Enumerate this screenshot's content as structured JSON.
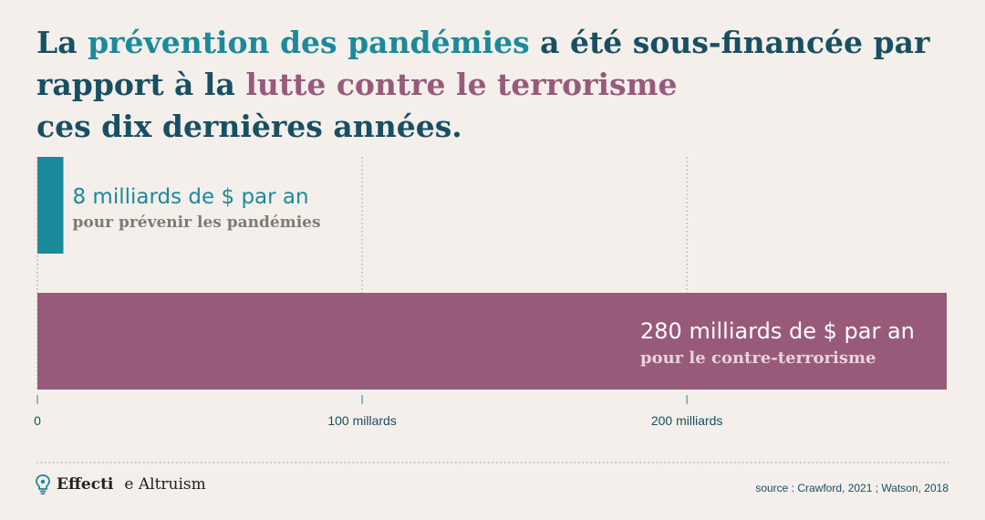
{
  "title": {
    "part1": "La ",
    "highlight1": "prévention des pandémies",
    "part2": " a été sous-financée par rapport à la ",
    "highlight2": "lutte contre le terrorisme",
    "part3": "ces dix dernières années."
  },
  "colors": {
    "title": "#174f63",
    "teal": "#1b8a9b",
    "purple": "#985a7b",
    "background": "#f4efea"
  },
  "chart_data": {
    "type": "bar",
    "orientation": "horizontal",
    "xlim": [
      0,
      280
    ],
    "grid": "vertical dotted",
    "ticks": [
      {
        "value": 0,
        "label": "0"
      },
      {
        "value": 100,
        "label": "100 millards"
      },
      {
        "value": 200,
        "label": "200 milliards"
      }
    ],
    "bars": [
      {
        "value": 8,
        "label": "8 milliards de $ par an",
        "sublabel": "pour prévenir les pandémies",
        "color": "#1b8a9b",
        "label_color": "#1b8a9b",
        "sublabel_color": "#7f7a74"
      },
      {
        "value": 280,
        "label": "280 milliards de $ par an",
        "sublabel": "pour le contre-terrorisme",
        "color": "#985a7b",
        "label_color": "#ffffff",
        "sublabel_color": "#e8d3de"
      }
    ]
  },
  "footer": {
    "logo_word1": "Effecti",
    "logo_word2": "e Altruism",
    "logo_icon": "lightbulb-icon",
    "source": "source : Crawford, 2021 ; Watson, 2018"
  }
}
